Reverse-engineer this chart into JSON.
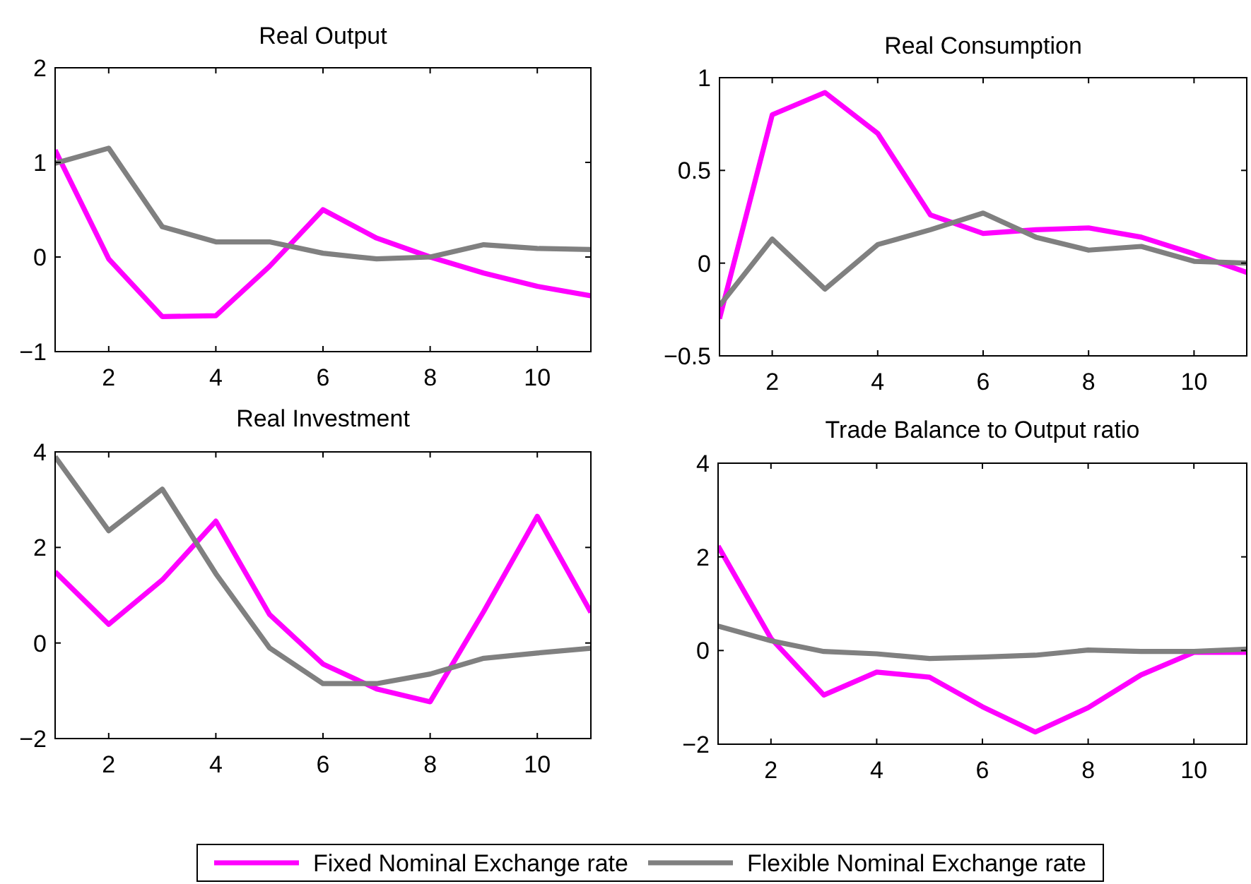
{
  "chart_data": [
    {
      "type": "line",
      "title": "Real Output",
      "x": [
        1,
        2,
        3,
        4,
        5,
        6,
        7,
        8,
        9,
        10,
        11
      ],
      "xlim": [
        1,
        11
      ],
      "xticks": [
        2,
        4,
        6,
        8,
        10
      ],
      "ylim": [
        -1,
        2
      ],
      "yticks": [
        -1,
        0,
        1,
        2
      ],
      "legend": "bottom",
      "series": [
        {
          "name": "Fixed Nominal Exchange rate",
          "color": "#ff00ff",
          "values": [
            1.13,
            -0.02,
            -0.63,
            -0.62,
            -0.1,
            0.5,
            0.2,
            0.0,
            -0.17,
            -0.31,
            -0.41
          ]
        },
        {
          "name": "Flexible Nominal Exchange rate",
          "color": "#808080",
          "values": [
            0.99,
            1.15,
            0.32,
            0.16,
            0.16,
            0.04,
            -0.02,
            0.0,
            0.13,
            0.09,
            0.08
          ]
        }
      ]
    },
    {
      "type": "line",
      "title": "Real Consumption",
      "x": [
        1,
        2,
        3,
        4,
        5,
        6,
        7,
        8,
        9,
        10,
        11
      ],
      "xlim": [
        1,
        11
      ],
      "xticks": [
        2,
        4,
        6,
        8,
        10
      ],
      "ylim": [
        -0.5,
        1
      ],
      "yticks": [
        -0.5,
        0,
        0.5,
        1
      ],
      "series": [
        {
          "name": "Fixed Nominal Exchange rate",
          "color": "#ff00ff",
          "values": [
            -0.3,
            0.8,
            0.92,
            0.7,
            0.26,
            0.16,
            0.18,
            0.19,
            0.14,
            0.05,
            -0.05
          ]
        },
        {
          "name": "Flexible Nominal Exchange rate",
          "color": "#808080",
          "values": [
            -0.23,
            0.13,
            -0.14,
            0.1,
            0.18,
            0.27,
            0.14,
            0.07,
            0.09,
            0.01,
            0.0
          ]
        }
      ]
    },
    {
      "type": "line",
      "title": "Real Investment",
      "x": [
        1,
        2,
        3,
        4,
        5,
        6,
        7,
        8,
        9,
        10,
        11
      ],
      "xlim": [
        1,
        11
      ],
      "xticks": [
        2,
        4,
        6,
        8,
        10
      ],
      "ylim": [
        -2,
        4
      ],
      "yticks": [
        -2,
        0,
        2,
        4
      ],
      "series": [
        {
          "name": "Fixed Nominal Exchange rate",
          "color": "#ff00ff",
          "values": [
            1.49,
            0.39,
            1.32,
            2.55,
            0.6,
            -0.44,
            -0.96,
            -1.23,
            0.66,
            2.65,
            0.64
          ]
        },
        {
          "name": "Flexible Nominal Exchange rate",
          "color": "#808080",
          "values": [
            3.9,
            2.35,
            3.22,
            1.45,
            -0.1,
            -0.85,
            -0.85,
            -0.65,
            -0.32,
            -0.21,
            -0.11
          ]
        }
      ]
    },
    {
      "type": "line",
      "title": "Trade Balance to Output ratio",
      "x": [
        1,
        2,
        3,
        4,
        5,
        6,
        7,
        8,
        9,
        10,
        11
      ],
      "xlim": [
        1,
        11
      ],
      "xticks": [
        2,
        4,
        6,
        8,
        10
      ],
      "ylim": [
        -2,
        4
      ],
      "yticks": [
        -2,
        0,
        2,
        4
      ],
      "series": [
        {
          "name": "Fixed Nominal Exchange rate",
          "color": "#ff00ff",
          "values": [
            2.23,
            0.26,
            -0.95,
            -0.46,
            -0.57,
            -1.2,
            -1.74,
            -1.22,
            -0.52,
            -0.04,
            -0.04
          ]
        },
        {
          "name": "Flexible Nominal Exchange rate",
          "color": "#808080",
          "values": [
            0.52,
            0.21,
            -0.02,
            -0.07,
            -0.17,
            -0.14,
            -0.1,
            0.01,
            -0.02,
            -0.02,
            0.03
          ]
        }
      ]
    }
  ]
}
